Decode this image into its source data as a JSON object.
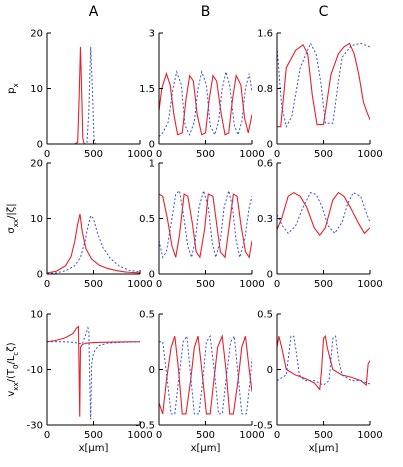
{
  "chart_data": {
    "type": "line",
    "layout": "3x3 grid of line plots",
    "column_titles": [
      "A",
      "B",
      "C"
    ],
    "row_labels": [
      "p_x",
      "σ_xx/|ζ|",
      "v_xx/(T_0/L_c ζ)"
    ],
    "xlabel": "x[μm]",
    "xlim": [
      0,
      1000
    ],
    "xticks": [
      "0",
      "500",
      "1000"
    ],
    "series_styles": [
      {
        "color": "#e8202a",
        "dash": "solid"
      },
      {
        "color": "#3a4fd8",
        "dash": "dotted"
      }
    ],
    "panels": [
      {
        "row": 0,
        "col": 0,
        "ylim": [
          0,
          20
        ],
        "yticks": [
          "0",
          "10",
          "20"
        ],
        "series": [
          {
            "x": [
              0,
              300,
              330,
              345,
              360,
              375,
              385,
              400,
              1000
            ],
            "y": [
              0,
              0,
              0.3,
              8,
              17.5,
              8,
              1,
              0,
              0
            ]
          },
          {
            "x": [
              0,
              400,
              430,
              450,
              470,
              490,
              505,
              520,
              1000
            ],
            "y": [
              0,
              0,
              0.3,
              6,
              17.5,
              9,
              1,
              0,
              0
            ]
          }
        ]
      },
      {
        "row": 0,
        "col": 1,
        "ylim": [
          0,
          3
        ],
        "yticks": [
          "0",
          "1.5",
          "3"
        ],
        "series": [
          {
            "x": [
              0,
              30,
              80,
              120,
              160,
              200,
              250,
              290,
              330,
              370,
              410,
              460,
              500,
              540,
              580,
              620,
              670,
              710,
              750,
              790,
              830,
              880,
              920,
              960,
              1000
            ],
            "y": [
              0.9,
              1.5,
              1.9,
              1.6,
              0.8,
              0.25,
              0.3,
              1.2,
              1.85,
              1.7,
              0.8,
              0.25,
              0.3,
              1.2,
              1.85,
              1.7,
              0.8,
              0.25,
              0.3,
              1.2,
              1.85,
              1.6,
              0.7,
              0.3,
              0.8
            ]
          },
          {
            "x": [
              0,
              40,
              100,
              150,
              190,
              240,
              280,
              330,
              380,
              420,
              460,
              510,
              550,
              600,
              640,
              680,
              720,
              760,
              810,
              850,
              890,
              930,
              970,
              1000
            ],
            "y": [
              0.2,
              0.3,
              0.6,
              1.5,
              1.95,
              1.6,
              0.5,
              0.25,
              0.6,
              1.5,
              1.95,
              1.6,
              0.5,
              0.25,
              0.6,
              1.5,
              1.95,
              1.6,
              0.5,
              0.25,
              0.6,
              1.5,
              1.9,
              1.4
            ]
          }
        ]
      },
      {
        "row": 0,
        "col": 2,
        "ylim": [
          0,
          1.6
        ],
        "yticks": [
          "0",
          "0.8",
          "1.6"
        ],
        "series": [
          {
            "x": [
              0,
              40,
              100,
              200,
              280,
              330,
              380,
              430,
              500,
              580,
              660,
              720,
              780,
              830,
              880,
              930,
              970,
              1000
            ],
            "y": [
              0.25,
              0.25,
              1.1,
              1.35,
              1.43,
              1.3,
              0.7,
              0.28,
              0.28,
              1.0,
              1.3,
              1.4,
              1.45,
              1.3,
              1.0,
              0.6,
              0.45,
              0.35
            ]
          },
          {
            "x": [
              0,
              50,
              100,
              160,
              250,
              360,
              420,
              470,
              520,
              600,
              660,
              700,
              800,
              900,
              1000
            ],
            "y": [
              1.4,
              0.55,
              0.25,
              0.4,
              1.1,
              1.45,
              1.3,
              0.9,
              0.3,
              0.3,
              0.9,
              1.25,
              1.42,
              1.45,
              1.4
            ]
          }
        ]
      },
      {
        "row": 1,
        "col": 0,
        "ylim": [
          0,
          20
        ],
        "yticks": [
          "0",
          "10",
          "20"
        ],
        "series": [
          {
            "x": [
              0,
              100,
              200,
              260,
              300,
              330,
              355,
              380,
              420,
              480,
              560,
              650,
              750,
              850,
              1000
            ],
            "y": [
              0.2,
              0.5,
              1.5,
              3.2,
              6,
              9,
              10.8,
              7.5,
              4.5,
              2.7,
              1.6,
              1.0,
              0.6,
              0.35,
              0.2
            ]
          },
          {
            "x": [
              0,
              100,
              200,
              300,
              360,
              410,
              440,
              470,
              500,
              540,
              600,
              680,
              780,
              880,
              1000
            ],
            "y": [
              0.1,
              0.2,
              0.6,
              1.5,
              3,
              6,
              8.5,
              10.5,
              10,
              7.5,
              4.8,
              2.8,
              1.4,
              0.7,
              0.35
            ]
          }
        ]
      },
      {
        "row": 1,
        "col": 1,
        "ylim": [
          0,
          1
        ],
        "yticks": [
          "0",
          "0.5",
          "1"
        ],
        "series": [
          {
            "x": [
              0,
              40,
              90,
              140,
              180,
              220,
              270,
              310,
              360,
              400,
              440,
              490,
              530,
              580,
              620,
              660,
              710,
              750,
              800,
              840,
              880,
              930,
              970,
              1000
            ],
            "y": [
              0.72,
              0.7,
              0.5,
              0.25,
              0.15,
              0.35,
              0.72,
              0.7,
              0.45,
              0.2,
              0.15,
              0.4,
              0.72,
              0.7,
              0.45,
              0.2,
              0.15,
              0.4,
              0.72,
              0.7,
              0.45,
              0.2,
              0.15,
              0.3
            ]
          },
          {
            "x": [
              0,
              40,
              80,
              130,
              180,
              220,
              260,
              310,
              350,
              390,
              430,
              480,
              530,
              570,
              610,
              660,
              700,
              750,
              790,
              830,
              870,
              920,
              970,
              1000
            ],
            "y": [
              0.3,
              0.15,
              0.2,
              0.45,
              0.72,
              0.75,
              0.55,
              0.25,
              0.15,
              0.3,
              0.6,
              0.75,
              0.6,
              0.3,
              0.15,
              0.3,
              0.6,
              0.75,
              0.6,
              0.3,
              0.15,
              0.3,
              0.6,
              0.7
            ]
          }
        ]
      },
      {
        "row": 1,
        "col": 2,
        "ylim": [
          0,
          0.6
        ],
        "yticks": [
          "0",
          "0.3",
          "0.6"
        ],
        "series": [
          {
            "x": [
              0,
              50,
              120,
              180,
              250,
              320,
              400,
              460,
              520,
              600,
              660,
              720,
              800,
              870,
              940,
              1000
            ],
            "y": [
              0.24,
              0.3,
              0.42,
              0.44,
              0.42,
              0.36,
              0.25,
              0.21,
              0.25,
              0.4,
              0.44,
              0.42,
              0.35,
              0.28,
              0.22,
              0.25
            ]
          },
          {
            "x": [
              0,
              60,
              120,
              200,
              280,
              360,
              420,
              480,
              550,
              620,
              700,
              760,
              820,
              900,
              960,
              1000
            ],
            "y": [
              0.32,
              0.26,
              0.22,
              0.26,
              0.36,
              0.44,
              0.43,
              0.37,
              0.26,
              0.22,
              0.28,
              0.38,
              0.44,
              0.42,
              0.33,
              0.28
            ]
          }
        ]
      },
      {
        "row": 2,
        "col": 0,
        "ylim": [
          -30,
          10
        ],
        "yticks": [
          "-30",
          "-10",
          "10"
        ],
        "series": [
          {
            "x": [
              0,
              100,
              200,
              280,
              320,
              338,
              345,
              352,
              360,
              380,
              420,
              500,
              600,
              700,
              800,
              1000
            ],
            "y": [
              0,
              0.5,
              1.5,
              3,
              5,
              5.5,
              -10,
              -27,
              -2,
              -1,
              -0.5,
              -0.3,
              -0.2,
              -0.1,
              -0.05,
              0
            ]
          },
          {
            "x": [
              0,
              200,
              300,
              380,
              420,
              440,
              450,
              460,
              470,
              480,
              500,
              550,
              650,
              800,
              1000
            ],
            "y": [
              0,
              0,
              -0.3,
              -0.8,
              3,
              5,
              4,
              -15,
              -28,
              -8,
              -4,
              -1.5,
              -0.5,
              -0.2,
              0
            ]
          }
        ]
      },
      {
        "row": 2,
        "col": 1,
        "ylim": [
          -0.5,
          0.5
        ],
        "yticks": [
          "-0.5",
          "0",
          "0.5"
        ],
        "series": [
          {
            "x": [
              0,
              40,
              80,
              130,
              170,
              210,
              250,
              290,
              340,
              380,
              420,
              460,
              510,
              550,
              590,
              630,
              680,
              720,
              760,
              800,
              850,
              890,
              930,
              970,
              1000
            ],
            "y": [
              -0.3,
              -0.4,
              -0.1,
              0.2,
              0.3,
              0.0,
              -0.4,
              -0.4,
              -0.1,
              0.2,
              0.3,
              0.0,
              -0.4,
              -0.4,
              -0.1,
              0.2,
              0.3,
              0.0,
              -0.4,
              -0.4,
              -0.1,
              0.2,
              0.3,
              0.0,
              -0.2
            ]
          },
          {
            "x": [
              0,
              40,
              90,
              130,
              170,
              210,
              260,
              300,
              340,
              380,
              430,
              470,
              510,
              550,
              600,
              640,
              680,
              720,
              770,
              810,
              850,
              890,
              940,
              980,
              1000
            ],
            "y": [
              0.25,
              0.25,
              -0.1,
              -0.4,
              -0.4,
              -0.1,
              0.25,
              0.3,
              -0.05,
              -0.4,
              -0.4,
              -0.1,
              0.25,
              0.3,
              -0.05,
              -0.4,
              -0.4,
              -0.1,
              0.25,
              0.3,
              -0.05,
              -0.4,
              -0.4,
              -0.1,
              0.1
            ]
          }
        ]
      },
      {
        "row": 2,
        "col": 2,
        "ylim": [
          -0.5,
          0.5
        ],
        "yticks": [
          "-0.5",
          "0",
          "0.5"
        ],
        "series": [
          {
            "x": [
              0,
              20,
              50,
              100,
              200,
              300,
              400,
              460,
              480,
              500,
              520,
              540,
              600,
              700,
              800,
              900,
              960,
              980,
              1000
            ],
            "y": [
              0.2,
              0.3,
              0.2,
              0.0,
              -0.05,
              -0.08,
              -0.12,
              -0.18,
              0.0,
              0.28,
              0.3,
              0.2,
              0.0,
              -0.05,
              -0.07,
              -0.1,
              -0.14,
              0.05,
              0.08
            ]
          },
          {
            "x": [
              0,
              100,
              150,
              180,
              200,
              240,
              300,
              400,
              500,
              560,
              600,
              630,
              660,
              700,
              800,
              900,
              1000
            ],
            "y": [
              -0.1,
              -0.05,
              0.3,
              0.3,
              0.2,
              -0.05,
              -0.1,
              -0.1,
              -0.14,
              -0.1,
              0.28,
              0.3,
              0.1,
              -0.05,
              -0.1,
              -0.1,
              -0.13
            ]
          }
        ]
      }
    ]
  }
}
